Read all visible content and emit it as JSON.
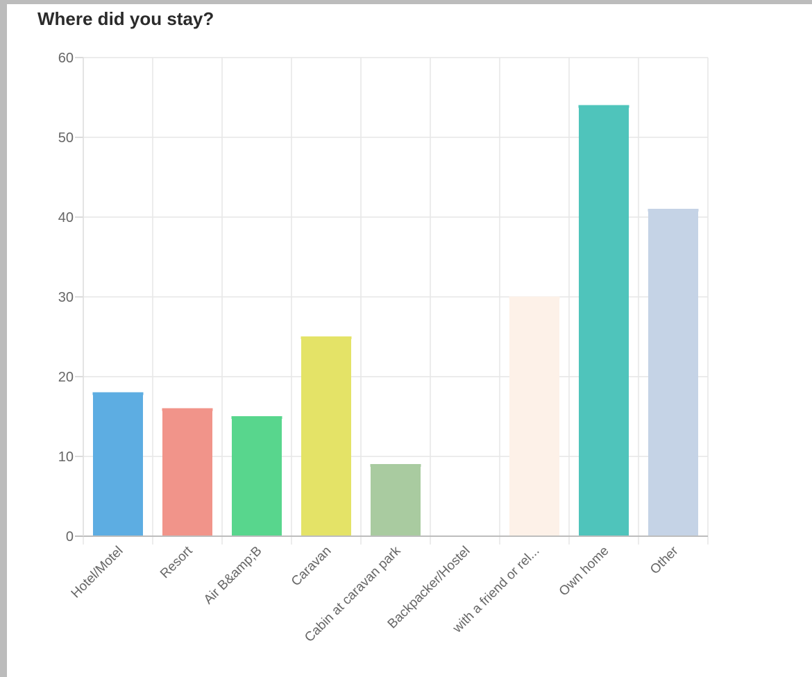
{
  "chart_data": {
    "type": "bar",
    "title": "Where did you stay?",
    "xlabel": "",
    "ylabel": "",
    "ylim": [
      0,
      60
    ],
    "yticks": [
      0,
      10,
      20,
      30,
      40,
      50,
      60
    ],
    "grid": true,
    "legend": "none",
    "categories": [
      "Hotel/Motel",
      "Resort",
      "Air B&amp;B",
      "Caravan",
      "Cabin at caravan park",
      "Backpacker/Hostel",
      "with a friend or rel...",
      "Own home",
      "Other"
    ],
    "values": [
      18,
      16,
      15,
      25,
      9,
      0,
      30,
      54,
      41
    ],
    "colors": [
      "#5dade2",
      "#f1948a",
      "#58d68d",
      "#e4e367",
      "#a9cba0",
      "#f4f4f4",
      "#fdf1e8",
      "#4fc4bb",
      "#c5d3e6"
    ]
  }
}
